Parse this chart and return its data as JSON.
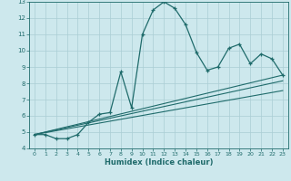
{
  "xlabel": "Humidex (Indice chaleur)",
  "background_color": "#cde8ed",
  "grid_color": "#aacdd4",
  "line_color": "#1f6b6b",
  "xlim": [
    -0.5,
    23.5
  ],
  "ylim": [
    4,
    13
  ],
  "xticks": [
    0,
    1,
    2,
    3,
    4,
    5,
    6,
    7,
    8,
    9,
    10,
    11,
    12,
    13,
    14,
    15,
    16,
    17,
    18,
    19,
    20,
    21,
    22,
    23
  ],
  "yticks": [
    4,
    5,
    6,
    7,
    8,
    9,
    10,
    11,
    12,
    13
  ],
  "curve1_x": [
    0,
    1,
    2,
    3,
    4,
    5,
    6,
    7,
    8,
    9,
    10,
    11,
    12,
    13,
    14,
    15,
    16,
    17,
    18,
    19,
    20,
    21,
    22,
    23
  ],
  "curve1_y": [
    4.85,
    4.85,
    4.6,
    4.6,
    4.85,
    5.6,
    6.1,
    6.2,
    8.7,
    6.5,
    11.0,
    12.5,
    13.0,
    12.6,
    11.6,
    9.9,
    8.8,
    9.0,
    10.15,
    10.4,
    9.2,
    9.8,
    9.5,
    8.5
  ],
  "line1_x": [
    0,
    23
  ],
  "line1_y": [
    4.85,
    8.5
  ],
  "line2_x": [
    0,
    23
  ],
  "line2_y": [
    4.85,
    7.55
  ],
  "line3_x": [
    0,
    23
  ],
  "line3_y": [
    4.85,
    8.15
  ]
}
